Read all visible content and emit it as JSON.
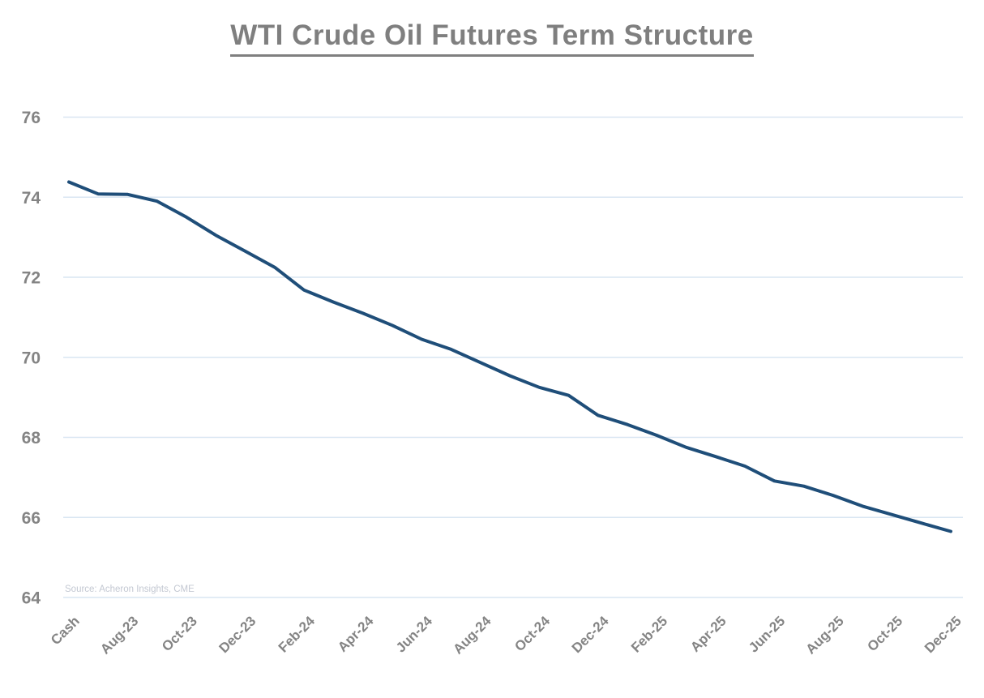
{
  "page": {
    "title": "WTI Crude Oil Futures Term Structure",
    "source_note": "Source: Acheron Insights, CME"
  },
  "chart_data": {
    "type": "line",
    "title": "WTI Crude Oil Futures Term Structure",
    "series_name": "WTI crude oil futures price",
    "categories": [
      "Cash",
      "Jul-23",
      "Aug-23",
      "Sep-23",
      "Oct-23",
      "Nov-23",
      "Dec-23",
      "Jan-24",
      "Feb-24",
      "Mar-24",
      "Apr-24",
      "May-24",
      "Jun-24",
      "Jul-24",
      "Aug-24",
      "Sep-24",
      "Oct-24",
      "Nov-24",
      "Dec-24",
      "Jan-25",
      "Feb-25",
      "Mar-25",
      "Apr-25",
      "May-25",
      "Jun-25",
      "Jul-25",
      "Aug-25",
      "Sep-25",
      "Oct-25",
      "Nov-25",
      "Dec-25"
    ],
    "values": [
      74.38,
      74.08,
      74.07,
      73.9,
      73.5,
      73.05,
      72.65,
      72.25,
      71.68,
      71.38,
      71.1,
      70.8,
      70.45,
      70.2,
      69.87,
      69.54,
      69.25,
      69.05,
      68.55,
      68.32,
      68.05,
      67.75,
      67.52,
      67.28,
      66.91,
      66.78,
      66.55,
      66.28,
      66.07,
      65.86,
      65.65
    ],
    "x_axis": {
      "visible_tick_labels": [
        "Cash",
        "Aug-23",
        "Oct-23",
        "Dec-23",
        "Feb-24",
        "Apr-24",
        "Jun-24",
        "Aug-24",
        "Oct-24",
        "Dec-24",
        "Feb-25",
        "Apr-25",
        "Jun-25",
        "Aug-25",
        "Oct-25",
        "Dec-25"
      ],
      "label_every_n_categories": 2,
      "label_rotation_deg": -45
    },
    "y_axis": {
      "ticks": [
        76,
        74,
        72,
        70,
        68,
        66,
        64
      ],
      "range": [
        64,
        76
      ]
    },
    "grid": "horizontal-only",
    "legend": "none",
    "annotations": [
      "Source: Acheron Insights, CME"
    ],
    "colors": {
      "line": "#1f4e79",
      "gridline": "#d9e6f2",
      "title": "#7f7f7f",
      "axis_labels": "#848484",
      "source_note": "#c3c8d2",
      "background": "#ffffff"
    }
  }
}
